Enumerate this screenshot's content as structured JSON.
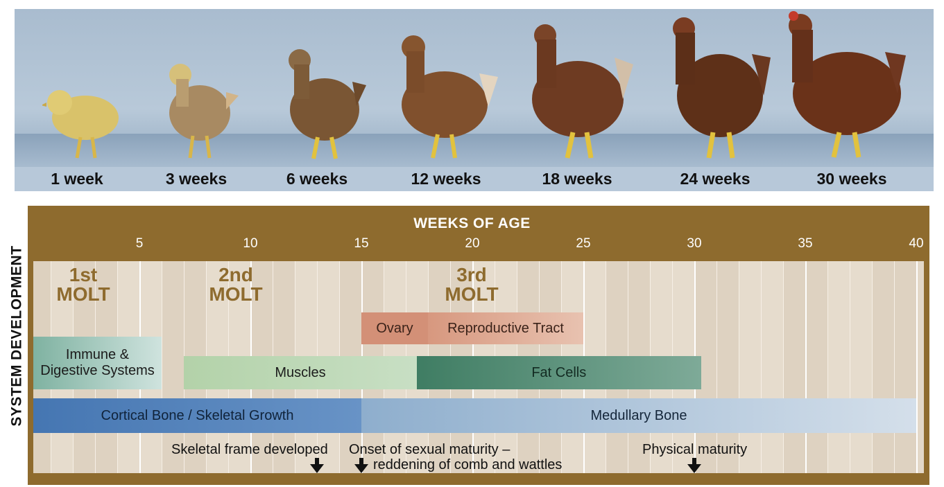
{
  "ages": [
    "1 week",
    "3 weeks",
    "6 weeks",
    "12 weeks",
    "18 weeks",
    "24 weeks",
    "30 weeks"
  ],
  "axis": {
    "title": "WEEKS OF AGE",
    "ticks": [
      "5",
      "10",
      "15",
      "20",
      "25",
      "30",
      "35",
      "40"
    ]
  },
  "ylabel": "SYSTEM DEVELOPMENT",
  "molts": [
    {
      "line1": "1st",
      "line2": "MOLT"
    },
    {
      "line1": "2nd",
      "line2": "MOLT"
    },
    {
      "line1": "3rd",
      "line2": "MOLT"
    }
  ],
  "bars": {
    "ovary": "Ovary",
    "reproductive_tract": "Reproductive Tract",
    "immune_line1": "Immune &",
    "immune_line2": "Digestive Systems",
    "muscles": "Muscles",
    "fat_cells": "Fat Cells",
    "cortical_bone": "Cortical Bone / Skeletal Growth",
    "medullary_bone": "Medullary Bone"
  },
  "milestones": {
    "skeletal_frame": "Skeletal frame developed",
    "sexual_maturity_line1": "Onset of sexual maturity –",
    "sexual_maturity_line2": "reddening of comb and wattles",
    "physical_maturity": "Physical maturity"
  },
  "timeline": [
    {
      "system": "Immune & Digestive Systems",
      "start_week": 0,
      "end_week": 6
    },
    {
      "system": "Muscles",
      "start_week": 7,
      "end_week": 17.5
    },
    {
      "system": "Fat Cells",
      "start_week": 17.5,
      "end_week": 30.3
    },
    {
      "system": "Ovary",
      "start_week": 15,
      "end_week": 18
    },
    {
      "system": "Reproductive Tract",
      "start_week": 18,
      "end_week": 25
    },
    {
      "system": "Cortical Bone / Skeletal Growth",
      "start_week": 0,
      "end_week": 15
    },
    {
      "system": "Medullary Bone",
      "start_week": 15,
      "end_week": 40
    },
    {
      "milestone": "Skeletal frame developed",
      "week": 13
    },
    {
      "milestone": "Onset of sexual maturity",
      "week": 15
    },
    {
      "milestone": "Physical maturity",
      "week": 30
    }
  ],
  "colors": {
    "frame": "#8e6b2e",
    "molt_text": "#8e6b2e",
    "ovary": "#d28e77",
    "reproductive": "#e0b09b",
    "immune": "#8fb9a9",
    "muscles": "#b9d3ae",
    "fat_cells": "#4f8870",
    "cortical_bone": "#4f7fb7",
    "medullary_bone": "#a6bfd6"
  }
}
